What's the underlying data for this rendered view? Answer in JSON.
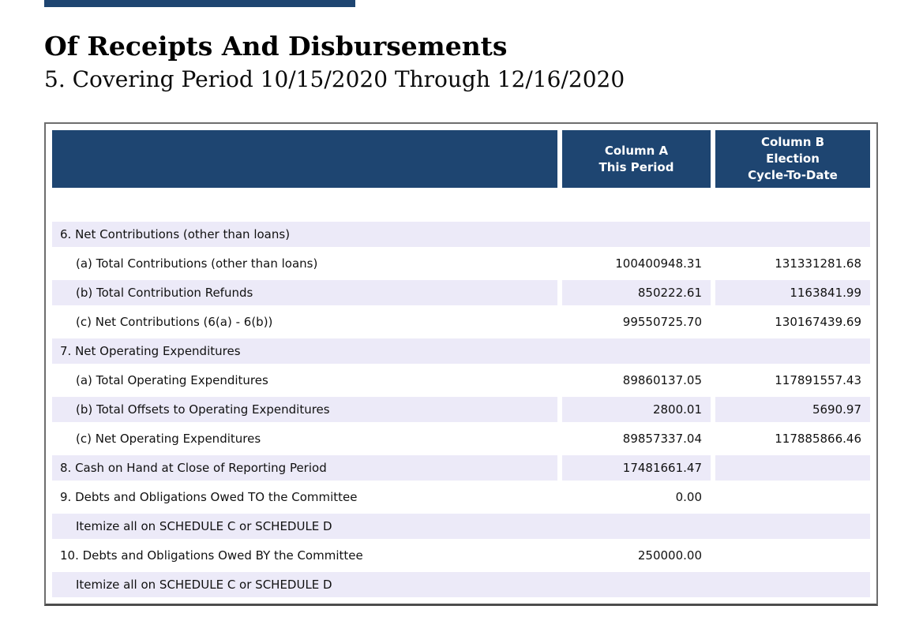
{
  "colors": {
    "navy": "#1E4571",
    "row_shade": "#ECEAF8",
    "table_border": "#6E6E6E"
  },
  "page": {
    "title": "Of Receipts And Disbursements",
    "covering_period_line": "5. Covering Period 10/15/2020 Through 12/16/2020"
  },
  "table": {
    "column_headers": {
      "column_a": [
        "Column A",
        "This Period"
      ],
      "column_b": [
        "Column B",
        "Election",
        "Cycle-To-Date"
      ]
    },
    "rows": [
      {
        "label": "6. Net Contributions (other than loans)",
        "a": "",
        "b": "",
        "merged": true,
        "shaded": true,
        "indent": false
      },
      {
        "label": "(a) Total Contributions (other than loans)",
        "a": "100400948.31",
        "b": "131331281.68",
        "merged": false,
        "shaded": false,
        "indent": true
      },
      {
        "label": "(b) Total Contribution Refunds",
        "a": "850222.61",
        "b": "1163841.99",
        "merged": false,
        "shaded": true,
        "indent": true
      },
      {
        "label": "(c) Net Contributions (6(a) - 6(b))",
        "a": "99550725.70",
        "b": "130167439.69",
        "merged": false,
        "shaded": false,
        "indent": true
      },
      {
        "label": "7. Net Operating Expenditures",
        "a": "",
        "b": "",
        "merged": true,
        "shaded": true,
        "indent": false
      },
      {
        "label": "(a) Total Operating Expenditures",
        "a": "89860137.05",
        "b": "117891557.43",
        "merged": false,
        "shaded": false,
        "indent": true
      },
      {
        "label": "(b) Total Offsets to Operating Expenditures",
        "a": "2800.01",
        "b": "5690.97",
        "merged": false,
        "shaded": true,
        "indent": true
      },
      {
        "label": "(c) Net Operating Expenditures",
        "a": "89857337.04",
        "b": "117885866.46",
        "merged": false,
        "shaded": false,
        "indent": true
      },
      {
        "label": "8. Cash on Hand at Close of Reporting Period",
        "a": "17481661.47",
        "b": "",
        "merged": false,
        "shaded": true,
        "indent": false
      },
      {
        "label": "9. Debts and Obligations Owed TO the Committee",
        "a": "0.00",
        "b": "",
        "merged": false,
        "shaded": false,
        "indent": false
      },
      {
        "label": "Itemize all on SCHEDULE C or SCHEDULE D",
        "a": "",
        "b": "",
        "merged": true,
        "shaded": true,
        "indent": true
      },
      {
        "label": "10. Debts and Obligations Owed BY the Committee",
        "a": "250000.00",
        "b": "",
        "merged": false,
        "shaded": false,
        "indent": false
      },
      {
        "label": "Itemize all on SCHEDULE C or SCHEDULE D",
        "a": "",
        "b": "",
        "merged": true,
        "shaded": true,
        "indent": true
      }
    ]
  }
}
